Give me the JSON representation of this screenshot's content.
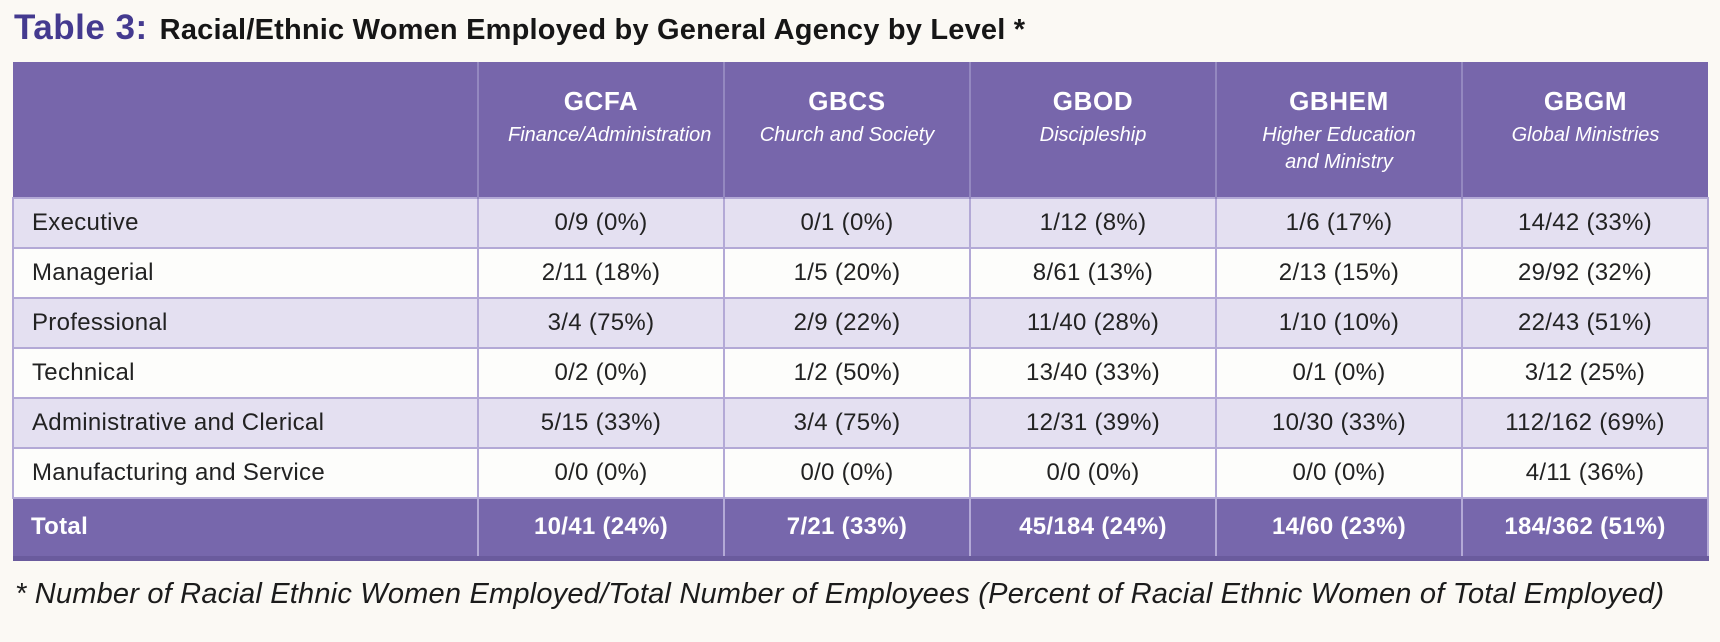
{
  "title": {
    "prefix": "Table 3:",
    "main": "Racial/Ethnic Women Employed by General Agency by Level *"
  },
  "colors": {
    "title_prefix": "#443a8f",
    "header_bg": "#7766ab",
    "total_bg": "#7767ac",
    "row_alt_bg": "#e4e0f1",
    "row_plain_bg": "#fdfdfb",
    "grid_line": "#b3a9d6",
    "page_bg": "#fbf9f4"
  },
  "table": {
    "columns": [
      {
        "abbr": "GCFA",
        "full": "Finance/Administration"
      },
      {
        "abbr": "GBCS",
        "full": "Church and Society"
      },
      {
        "abbr": "GBOD",
        "full": "Discipleship"
      },
      {
        "abbr": "GBHEM",
        "full": "Higher Education and Ministry"
      },
      {
        "abbr": "GBGM",
        "full": "Global Ministries"
      }
    ],
    "rows": [
      {
        "label": "Executive",
        "values": [
          "0/9 (0%)",
          "0/1 (0%)",
          "1/12 (8%)",
          "1/6 (17%)",
          "14/42 (33%)"
        ]
      },
      {
        "label": "Managerial",
        "values": [
          "2/11 (18%)",
          "1/5 (20%)",
          "8/61 (13%)",
          "2/13 (15%)",
          "29/92 (32%)"
        ]
      },
      {
        "label": "Professional",
        "values": [
          "3/4 (75%)",
          "2/9 (22%)",
          "11/40 (28%)",
          "1/10 (10%)",
          "22/43 (51%)"
        ]
      },
      {
        "label": "Technical",
        "values": [
          "0/2 (0%)",
          "1/2 (50%)",
          "13/40 (33%)",
          "0/1 (0%)",
          "3/12 (25%)"
        ]
      },
      {
        "label": "Administrative and Clerical",
        "values": [
          "5/15 (33%)",
          "3/4 (75%)",
          "12/31 (39%)",
          "10/30 (33%)",
          "112/162 (69%)"
        ]
      },
      {
        "label": "Manufacturing and Service",
        "values": [
          "0/0 (0%)",
          "0/0 (0%)",
          "0/0 (0%)",
          "0/0 (0%)",
          "4/11 (36%)"
        ]
      }
    ],
    "total": {
      "label": "Total",
      "values": [
        "10/41 (24%)",
        "7/21 (33%)",
        "45/184 (24%)",
        "14/60 (23%)",
        "184/362 (51%)"
      ]
    }
  },
  "footnote": "* Number of Racial Ethnic Women Employed/Total Number of Employees (Percent of Racial Ethnic Women of Total Employed)"
}
